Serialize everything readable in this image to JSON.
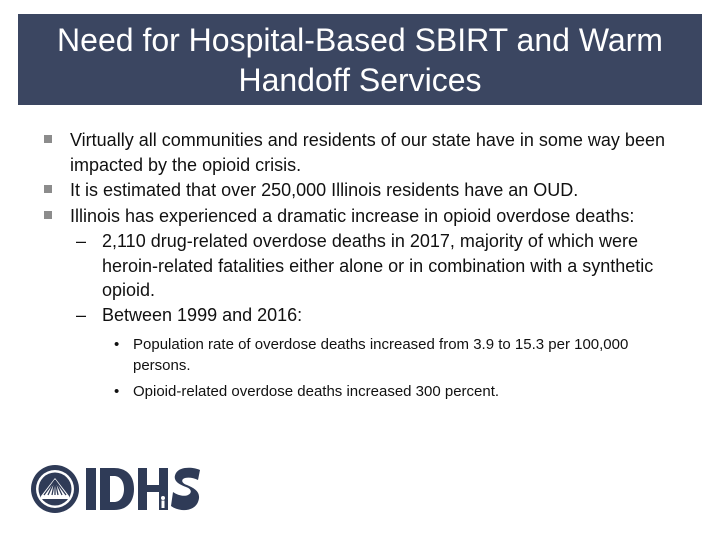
{
  "slide": {
    "title": "Need for Hospital-Based SBIRT and Warm Handoff Services",
    "bullets": [
      "Virtually all communities and residents of our state have in some way been impacted by the opioid crisis.",
      "It is estimated that over 250,000 Illinois residents have an OUD.",
      "Illinois has experienced a dramatic increase in opioid overdose deaths:"
    ],
    "sub_bullets": [
      "2,110 drug-related overdose deaths in 2017, majority of which were heroin-related fatalities either alone or in combination with a synthetic opioid.",
      "Between 1999 and 2016:"
    ],
    "sub_sub_bullets": [
      "Population rate of overdose deaths increased from 3.9 to 15.3 per 100,000 persons.",
      "Opioid-related overdose deaths increased 300 percent."
    ],
    "dash_glyph": "–",
    "dot_glyph": "•",
    "logo": {
      "text": "IDHS",
      "color": "#2f3b57",
      "icon": "state-seal-icon"
    }
  },
  "colors": {
    "title_bar": "#3b4661",
    "bullet_square": "#8c8c8c"
  }
}
